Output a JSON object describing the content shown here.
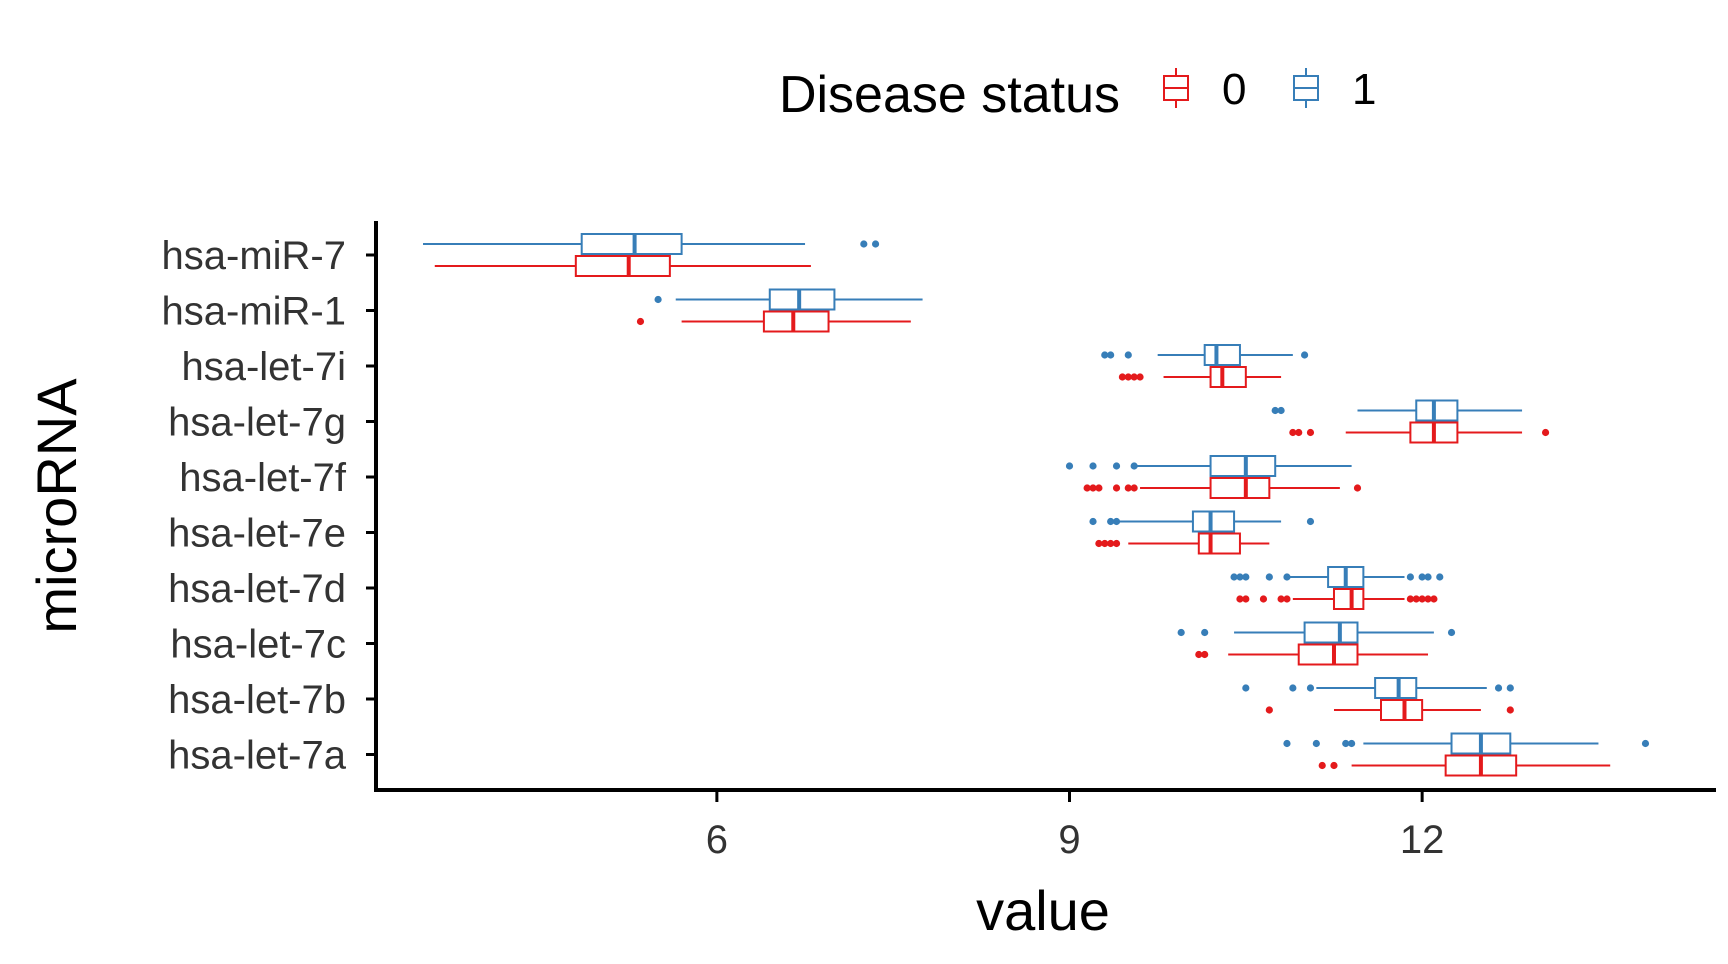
{
  "chart_data": {
    "type": "boxplot",
    "orientation": "horizontal",
    "title": "",
    "xlabel": "value",
    "ylabel": "microRNA",
    "xlim": [
      3.1,
      14.5
    ],
    "x_ticks": [
      6,
      9,
      12
    ],
    "x_tick_labels": [
      "6",
      "9",
      "12"
    ],
    "grid": false,
    "legend": {
      "title": "Disease status",
      "placement": "top"
    },
    "categories": [
      "hsa-miR-7",
      "hsa-miR-1",
      "hsa-let-7i",
      "hsa-let-7g",
      "hsa-let-7f",
      "hsa-let-7e",
      "hsa-let-7d",
      "hsa-let-7c",
      "hsa-let-7b",
      "hsa-let-7a"
    ],
    "series": [
      {
        "name": "0",
        "color": "#E41A1C",
        "boxes": [
          {
            "wlo": 3.6,
            "q1": 4.8,
            "med": 5.25,
            "q3": 5.6,
            "whi": 6.8,
            "outliers": []
          },
          {
            "wlo": 5.7,
            "q1": 6.4,
            "med": 6.65,
            "q3": 6.95,
            "whi": 7.65,
            "outliers": [
              5.35
            ]
          },
          {
            "wlo": 9.8,
            "q1": 10.2,
            "med": 10.3,
            "q3": 10.5,
            "whi": 10.8,
            "outliers": [
              9.45,
              9.5,
              9.55,
              9.6
            ]
          },
          {
            "wlo": 11.35,
            "q1": 11.9,
            "med": 12.1,
            "q3": 12.3,
            "whi": 12.85,
            "outliers": [
              10.9,
              10.95,
              11.05,
              13.05
            ]
          },
          {
            "wlo": 9.6,
            "q1": 10.2,
            "med": 10.5,
            "q3": 10.7,
            "whi": 11.3,
            "outliers": [
              9.15,
              9.2,
              9.25,
              9.4,
              9.5,
              9.55,
              11.45
            ]
          },
          {
            "wlo": 9.5,
            "q1": 10.1,
            "med": 10.2,
            "q3": 10.45,
            "whi": 10.7,
            "outliers": [
              9.25,
              9.3,
              9.35,
              9.4
            ]
          },
          {
            "wlo": 10.9,
            "q1": 11.25,
            "med": 11.4,
            "q3": 11.5,
            "whi": 11.85,
            "outliers": [
              10.45,
              10.5,
              10.65,
              10.8,
              10.85,
              11.9,
              11.95,
              12.0,
              12.05,
              12.1
            ]
          },
          {
            "wlo": 10.35,
            "q1": 10.95,
            "med": 11.25,
            "q3": 11.45,
            "whi": 12.05,
            "outliers": [
              10.1,
              10.15
            ]
          },
          {
            "wlo": 11.25,
            "q1": 11.65,
            "med": 11.85,
            "q3": 12.0,
            "whi": 12.5,
            "outliers": [
              10.7,
              12.75
            ]
          },
          {
            "wlo": 11.4,
            "q1": 12.2,
            "med": 12.5,
            "q3": 12.8,
            "whi": 13.6,
            "outliers": [
              11.15,
              11.25
            ]
          }
        ]
      },
      {
        "name": "1",
        "color": "#377EB8",
        "boxes": [
          {
            "wlo": 3.5,
            "q1": 4.85,
            "med": 5.3,
            "q3": 5.7,
            "whi": 6.75,
            "outliers": [
              7.25,
              7.35
            ]
          },
          {
            "wlo": 5.65,
            "q1": 6.45,
            "med": 6.7,
            "q3": 7.0,
            "whi": 7.75,
            "outliers": [
              5.5
            ]
          },
          {
            "wlo": 9.75,
            "q1": 10.15,
            "med": 10.25,
            "q3": 10.45,
            "whi": 10.9,
            "outliers": [
              9.3,
              9.35,
              9.5,
              11.0
            ]
          },
          {
            "wlo": 11.45,
            "q1": 11.95,
            "med": 12.1,
            "q3": 12.3,
            "whi": 12.85,
            "outliers": [
              10.75,
              10.8
            ]
          },
          {
            "wlo": 9.55,
            "q1": 10.2,
            "med": 10.5,
            "q3": 10.75,
            "whi": 11.4,
            "outliers": [
              9.0,
              9.2,
              9.4,
              9.55
            ]
          },
          {
            "wlo": 9.4,
            "q1": 10.05,
            "med": 10.2,
            "q3": 10.4,
            "whi": 10.8,
            "outliers": [
              9.2,
              9.35,
              9.4,
              11.05
            ]
          },
          {
            "wlo": 10.85,
            "q1": 11.2,
            "med": 11.35,
            "q3": 11.5,
            "whi": 11.85,
            "outliers": [
              10.4,
              10.45,
              10.5,
              10.7,
              10.85,
              11.9,
              12.0,
              12.05,
              12.15
            ]
          },
          {
            "wlo": 10.4,
            "q1": 11.0,
            "med": 11.3,
            "q3": 11.45,
            "whi": 12.1,
            "outliers": [
              9.95,
              10.15,
              12.25
            ]
          },
          {
            "wlo": 11.1,
            "q1": 11.6,
            "med": 11.8,
            "q3": 11.95,
            "whi": 12.55,
            "outliers": [
              10.5,
              10.9,
              11.05,
              12.65,
              12.75
            ]
          },
          {
            "wlo": 11.5,
            "q1": 12.25,
            "med": 12.5,
            "q3": 12.75,
            "whi": 13.5,
            "outliers": [
              10.85,
              11.1,
              11.35,
              11.4,
              13.9
            ]
          }
        ]
      }
    ]
  }
}
